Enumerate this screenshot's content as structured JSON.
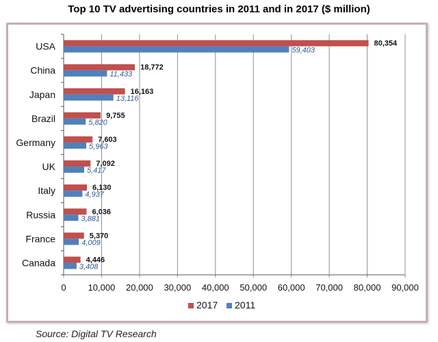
{
  "chart_data": {
    "type": "bar",
    "orientation": "horizontal",
    "title": "Top 10 TV advertising countries in 2011 and in 2017 ($ million)",
    "categories": [
      "USA",
      "China",
      "Japan",
      "Brazil",
      "Germany",
      "UK",
      "Italy",
      "Russia",
      "France",
      "Canada"
    ],
    "series": [
      {
        "name": "2017",
        "color": "#c0504d",
        "values": [
          80354,
          18772,
          16163,
          9755,
          7603,
          7092,
          6130,
          6036,
          5370,
          4446
        ],
        "labels": [
          "80,354",
          "18,772",
          "16,163",
          "9,755",
          "7,603",
          "7,092",
          "6,130",
          "6,036",
          "5,370",
          "4,446"
        ]
      },
      {
        "name": "2011",
        "color": "#4f81bd",
        "values": [
          59403,
          11433,
          13116,
          5820,
          5963,
          5417,
          4937,
          3881,
          4009,
          3408
        ],
        "labels": [
          "59,403",
          "11,433",
          "13,116",
          "5,820",
          "5,963",
          "5,417",
          "4,937",
          "3,881",
          "4,009",
          "3,408"
        ]
      }
    ],
    "xlim": [
      0,
      90000
    ],
    "xticks": [
      0,
      10000,
      20000,
      30000,
      40000,
      50000,
      60000,
      70000,
      80000,
      90000
    ],
    "xtick_labels": [
      "0",
      "10,000",
      "20,000",
      "30,000",
      "40,000",
      "50,000",
      "60,000",
      "70,000",
      "80,000",
      "90,000"
    ],
    "grid": true,
    "legend_position": "bottom"
  },
  "source": "Source: Digital TV Research"
}
